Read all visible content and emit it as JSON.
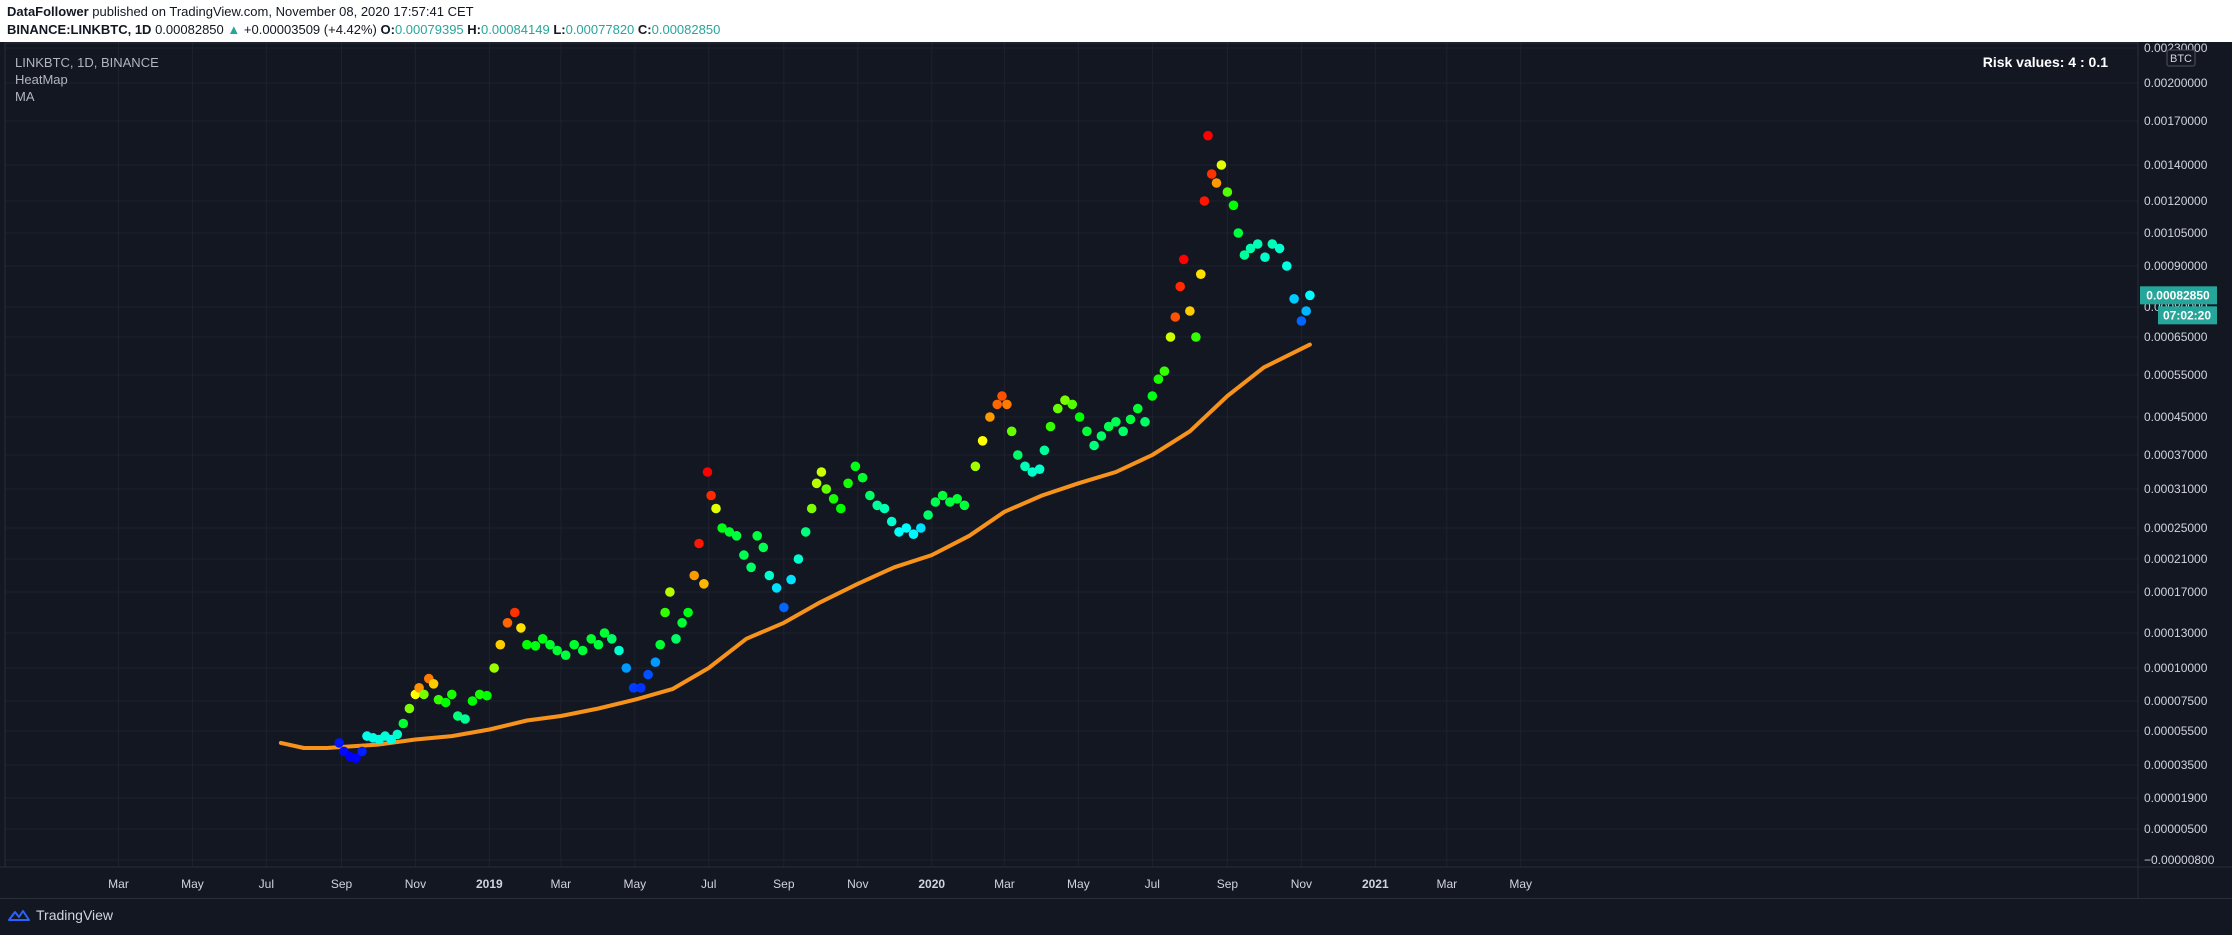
{
  "header": {
    "author": "DataFollower",
    "published_text": "published on TradingView.com, November 08, 2020 17:57:41 CET",
    "symbol": "BINANCE:LINKBTC, 1D",
    "last": "0.00082850",
    "change_arrow": "▲",
    "change": "+0.00003509 (+4.42%)",
    "o_label": "O:",
    "o_val": "0.00079395",
    "h_label": "H:",
    "h_val": "0.00084149",
    "l_label": "L:",
    "l_val": "0.00077820",
    "c_label": "C:",
    "c_val": "0.00082850"
  },
  "legend": {
    "title": "LINKBTC, 1D, BINANCE",
    "items": [
      "HeatMap",
      "MA"
    ]
  },
  "risk_label": "Risk values: 4 : 0.1",
  "currency_badge": "BTC",
  "price_badge": "0.00082850",
  "time_badge": "07:02:20",
  "branding": "TradingView",
  "colors": {
    "background": "#131722",
    "grid": "#1e222d",
    "ma": "#f7931a",
    "price_badge": "#26a69a",
    "axis_text": "#d1d4dc"
  },
  "chart_data": {
    "type": "scatter",
    "title": "",
    "xlabel": "",
    "ylabel": "",
    "x_ticks": [
      "Mar",
      "May",
      "Jul",
      "Sep",
      "Nov",
      "2019",
      "Mar",
      "May",
      "Jul",
      "Sep",
      "Nov",
      "2020",
      "Mar",
      "May",
      "Jul",
      "Sep",
      "Nov",
      "2021",
      "Mar",
      "May"
    ],
    "y_ticks": [
      "0.00230000",
      "0.00200000",
      "0.00170000",
      "0.00140000",
      "0.00120000",
      "0.00105000",
      "0.00090000",
      "0.00080000",
      "0.00065000",
      "0.00055000",
      "0.00045000",
      "0.00037000",
      "0.00031000",
      "0.00025000",
      "0.00021000",
      "0.00017000",
      "0.00013000",
      "0.00010000",
      "0.00007500",
      "0.00005500",
      "0.00003500",
      "0.00001900",
      "0.00000500",
      "−0.00000800"
    ],
    "series": [
      {
        "name": "HeatMap",
        "values": [
          [
            "2018-08-30",
            4.8e-05,
            0.02
          ],
          [
            "2018-09-03",
            4.3e-05,
            0.01
          ],
          [
            "2018-09-08",
            4e-05,
            0.0
          ],
          [
            "2018-09-13",
            3.9e-05,
            0.0
          ],
          [
            "2018-09-18",
            4.3e-05,
            0.03
          ],
          [
            "2018-09-22",
            5.2e-05,
            0.27
          ],
          [
            "2018-09-27",
            5.1e-05,
            0.27
          ],
          [
            "2018-10-02",
            5e-05,
            0.28
          ],
          [
            "2018-10-07",
            5.2e-05,
            0.29
          ],
          [
            "2018-10-12",
            5e-05,
            0.27
          ],
          [
            "2018-10-17",
            5.3e-05,
            0.3
          ],
          [
            "2018-10-22",
            6e-05,
            0.45
          ],
          [
            "2018-10-27",
            7e-05,
            0.62
          ],
          [
            "2018-11-01",
            8e-05,
            0.75
          ],
          [
            "2018-11-04",
            8.5e-05,
            0.86
          ],
          [
            "2018-11-08",
            8e-05,
            0.62
          ],
          [
            "2018-11-12",
            9.2e-05,
            0.88
          ],
          [
            "2018-11-16",
            8.8e-05,
            0.8
          ],
          [
            "2018-11-20",
            7.6e-05,
            0.55
          ],
          [
            "2018-11-26",
            7.4e-05,
            0.5
          ],
          [
            "2018-12-01",
            8e-05,
            0.52
          ],
          [
            "2018-12-06",
            6.5e-05,
            0.38
          ],
          [
            "2018-12-12",
            6.3e-05,
            0.35
          ],
          [
            "2018-12-18",
            7.5e-05,
            0.5
          ],
          [
            "2018-12-24",
            8e-05,
            0.52
          ],
          [
            "2018-12-30",
            7.9e-05,
            0.5
          ],
          [
            "2019-01-05",
            0.0001,
            0.65
          ],
          [
            "2019-01-10",
            0.00012,
            0.8
          ],
          [
            "2019-01-16",
            0.00014,
            0.9
          ],
          [
            "2019-01-22",
            0.00015,
            0.95
          ],
          [
            "2019-01-27",
            0.000135,
            0.78
          ],
          [
            "2019-02-01",
            0.00012,
            0.5
          ],
          [
            "2019-02-08",
            0.000119,
            0.48
          ],
          [
            "2019-02-14",
            0.000125,
            0.48
          ],
          [
            "2019-02-20",
            0.00012,
            0.46
          ],
          [
            "2019-02-26",
            0.000115,
            0.45
          ],
          [
            "2019-03-05",
            0.000111,
            0.44
          ],
          [
            "2019-03-12",
            0.00012,
            0.46
          ],
          [
            "2019-03-19",
            0.000115,
            0.44
          ],
          [
            "2019-03-26",
            0.000125,
            0.46
          ],
          [
            "2019-04-01",
            0.00012,
            0.44
          ],
          [
            "2019-04-06",
            0.00013,
            0.45
          ],
          [
            "2019-04-12",
            0.000125,
            0.4
          ],
          [
            "2019-04-18",
            0.000115,
            0.3
          ],
          [
            "2019-04-24",
            0.0001,
            0.15
          ],
          [
            "2019-04-30",
            8.5e-05,
            0.06
          ],
          [
            "2019-05-06",
            8.5e-05,
            0.05
          ],
          [
            "2019-05-12",
            9.5e-05,
            0.08
          ],
          [
            "2019-05-18",
            0.000105,
            0.15
          ],
          [
            "2019-05-22",
            0.00012,
            0.45
          ],
          [
            "2019-05-26",
            0.00015,
            0.55
          ],
          [
            "2019-05-30",
            0.00017,
            0.68
          ],
          [
            "2019-06-04",
            0.000125,
            0.4
          ],
          [
            "2019-06-09",
            0.00014,
            0.45
          ],
          [
            "2019-06-14",
            0.00015,
            0.48
          ],
          [
            "2019-06-19",
            0.00019,
            0.85
          ],
          [
            "2019-06-23",
            0.00023,
            0.98
          ],
          [
            "2019-06-27",
            0.00018,
            0.82
          ],
          [
            "2019-06-30",
            0.00034,
            1.0
          ],
          [
            "2019-07-03",
            0.0003,
            0.96
          ],
          [
            "2019-07-07",
            0.00028,
            0.72
          ],
          [
            "2019-07-12",
            0.00025,
            0.48
          ],
          [
            "2019-07-18",
            0.000245,
            0.46
          ],
          [
            "2019-07-24",
            0.00024,
            0.44
          ],
          [
            "2019-07-30",
            0.000215,
            0.42
          ],
          [
            "2019-08-05",
            0.0002,
            0.4
          ],
          [
            "2019-08-10",
            0.00024,
            0.44
          ],
          [
            "2019-08-15",
            0.000225,
            0.42
          ],
          [
            "2019-08-20",
            0.00019,
            0.3
          ],
          [
            "2019-08-26",
            0.000175,
            0.22
          ],
          [
            "2019-09-01",
            0.000155,
            0.1
          ],
          [
            "2019-09-07",
            0.000185,
            0.22
          ],
          [
            "2019-09-13",
            0.00021,
            0.3
          ],
          [
            "2019-09-19",
            0.000245,
            0.38
          ],
          [
            "2019-09-24",
            0.00028,
            0.62
          ],
          [
            "2019-09-28",
            0.00032,
            0.68
          ],
          [
            "2019-10-02",
            0.00034,
            0.7
          ],
          [
            "2019-10-06",
            0.00031,
            0.6
          ],
          [
            "2019-10-12",
            0.000295,
            0.52
          ],
          [
            "2019-10-18",
            0.00028,
            0.5
          ],
          [
            "2019-10-24",
            0.00032,
            0.52
          ],
          [
            "2019-10-30",
            0.00035,
            0.48
          ],
          [
            "2019-11-05",
            0.00033,
            0.46
          ],
          [
            "2019-11-11",
            0.0003,
            0.4
          ],
          [
            "2019-11-17",
            0.000285,
            0.35
          ],
          [
            "2019-11-23",
            0.00028,
            0.32
          ],
          [
            "2019-11-29",
            0.00026,
            0.3
          ],
          [
            "2019-12-05",
            0.000245,
            0.25
          ],
          [
            "2019-12-11",
            0.00025,
            0.25
          ],
          [
            "2019-12-17",
            0.000242,
            0.24
          ],
          [
            "2019-12-23",
            0.00025,
            0.22
          ],
          [
            "2019-12-29",
            0.00027,
            0.4
          ],
          [
            "2020-01-04",
            0.00029,
            0.42
          ],
          [
            "2020-01-10",
            0.0003,
            0.45
          ],
          [
            "2020-01-16",
            0.00029,
            0.44
          ],
          [
            "2020-01-22",
            0.000295,
            0.45
          ],
          [
            "2020-01-28",
            0.000285,
            0.44
          ],
          [
            "2020-02-06",
            0.00035,
            0.66
          ],
          [
            "2020-02-12",
            0.0004,
            0.75
          ],
          [
            "2020-02-18",
            0.00045,
            0.85
          ],
          [
            "2020-02-24",
            0.00048,
            0.9
          ],
          [
            "2020-02-28",
            0.0005,
            0.92
          ],
          [
            "2020-03-03",
            0.00048,
            0.88
          ],
          [
            "2020-03-07",
            0.00042,
            0.6
          ],
          [
            "2020-03-12",
            0.00037,
            0.4
          ],
          [
            "2020-03-18",
            0.00035,
            0.32
          ],
          [
            "2020-03-24",
            0.00034,
            0.3
          ],
          [
            "2020-03-30",
            0.000345,
            0.3
          ],
          [
            "2020-04-03",
            0.00038,
            0.35
          ],
          [
            "2020-04-08",
            0.00043,
            0.55
          ],
          [
            "2020-04-14",
            0.00047,
            0.6
          ],
          [
            "2020-04-20",
            0.00049,
            0.62
          ],
          [
            "2020-04-26",
            0.00048,
            0.58
          ],
          [
            "2020-05-02",
            0.00045,
            0.5
          ],
          [
            "2020-05-08",
            0.00042,
            0.45
          ],
          [
            "2020-05-14",
            0.00039,
            0.38
          ],
          [
            "2020-05-20",
            0.00041,
            0.4
          ],
          [
            "2020-05-26",
            0.00043,
            0.42
          ],
          [
            "2020-06-01",
            0.00044,
            0.42
          ],
          [
            "2020-06-07",
            0.00042,
            0.4
          ],
          [
            "2020-06-13",
            0.000445,
            0.44
          ],
          [
            "2020-06-19",
            0.00047,
            0.45
          ],
          [
            "2020-06-25",
            0.00044,
            0.4
          ],
          [
            "2020-07-01",
            0.0005,
            0.48
          ],
          [
            "2020-07-06",
            0.00054,
            0.52
          ],
          [
            "2020-07-11",
            0.00056,
            0.55
          ],
          [
            "2020-07-16",
            0.00065,
            0.7
          ],
          [
            "2020-07-20",
            0.00075,
            0.92
          ],
          [
            "2020-07-24",
            0.00085,
            0.96
          ],
          [
            "2020-07-27",
            0.00093,
            1.0
          ],
          [
            "2020-08-01",
            0.00078,
            0.8
          ],
          [
            "2020-08-06",
            0.00065,
            0.55
          ],
          [
            "2020-08-10",
            0.00088,
            0.78
          ],
          [
            "2020-08-13",
            0.0012,
            0.98
          ],
          [
            "2020-08-16",
            0.0016,
            1.0
          ],
          [
            "2020-08-19",
            0.00135,
            0.95
          ],
          [
            "2020-08-23",
            0.0013,
            0.85
          ],
          [
            "2020-08-27",
            0.0014,
            0.72
          ],
          [
            "2020-09-01",
            0.00125,
            0.58
          ],
          [
            "2020-09-06",
            0.00118,
            0.5
          ],
          [
            "2020-09-10",
            0.00105,
            0.44
          ],
          [
            "2020-09-15",
            0.00095,
            0.35
          ],
          [
            "2020-09-20",
            0.00098,
            0.33
          ],
          [
            "2020-09-26",
            0.001,
            0.32
          ],
          [
            "2020-10-02",
            0.00094,
            0.3
          ],
          [
            "2020-10-08",
            0.001,
            0.32
          ],
          [
            "2020-10-14",
            0.00098,
            0.3
          ],
          [
            "2020-10-20",
            0.0009,
            0.28
          ],
          [
            "2020-10-26",
            0.00082,
            0.2
          ],
          [
            "2020-11-01",
            0.00073,
            0.1
          ],
          [
            "2020-11-05",
            0.00078,
            0.18
          ],
          [
            "2020-11-08",
            0.0008285,
            0.25
          ]
        ]
      },
      {
        "name": "MA",
        "values": [
          [
            "2018-07-13",
            4.8e-05
          ],
          [
            "2018-08-01",
            4.5e-05
          ],
          [
            "2018-08-20",
            4.5e-05
          ],
          [
            "2018-09-10",
            4.6e-05
          ],
          [
            "2018-10-01",
            4.7e-05
          ],
          [
            "2018-11-01",
            5e-05
          ],
          [
            "2018-12-01",
            5.2e-05
          ],
          [
            "2019-01-01",
            5.6e-05
          ],
          [
            "2019-02-01",
            6.2e-05
          ],
          [
            "2019-03-01",
            6.5e-05
          ],
          [
            "2019-04-01",
            7e-05
          ],
          [
            "2019-05-01",
            7.6e-05
          ],
          [
            "2019-06-01",
            8.4e-05
          ],
          [
            "2019-07-01",
            0.0001
          ],
          [
            "2019-08-01",
            0.000125
          ],
          [
            "2019-09-01",
            0.00014
          ],
          [
            "2019-10-01",
            0.00016
          ],
          [
            "2019-11-01",
            0.00018
          ],
          [
            "2019-12-01",
            0.0002
          ],
          [
            "2020-01-01",
            0.000215
          ],
          [
            "2020-02-01",
            0.00024
          ],
          [
            "2020-03-01",
            0.000275
          ],
          [
            "2020-04-01",
            0.0003
          ],
          [
            "2020-05-01",
            0.00032
          ],
          [
            "2020-06-01",
            0.00034
          ],
          [
            "2020-07-01",
            0.00037
          ],
          [
            "2020-08-01",
            0.00042
          ],
          [
            "2020-09-01",
            0.0005
          ],
          [
            "2020-10-01",
            0.00057
          ],
          [
            "2020-11-08",
            0.00063
          ]
        ]
      }
    ]
  }
}
